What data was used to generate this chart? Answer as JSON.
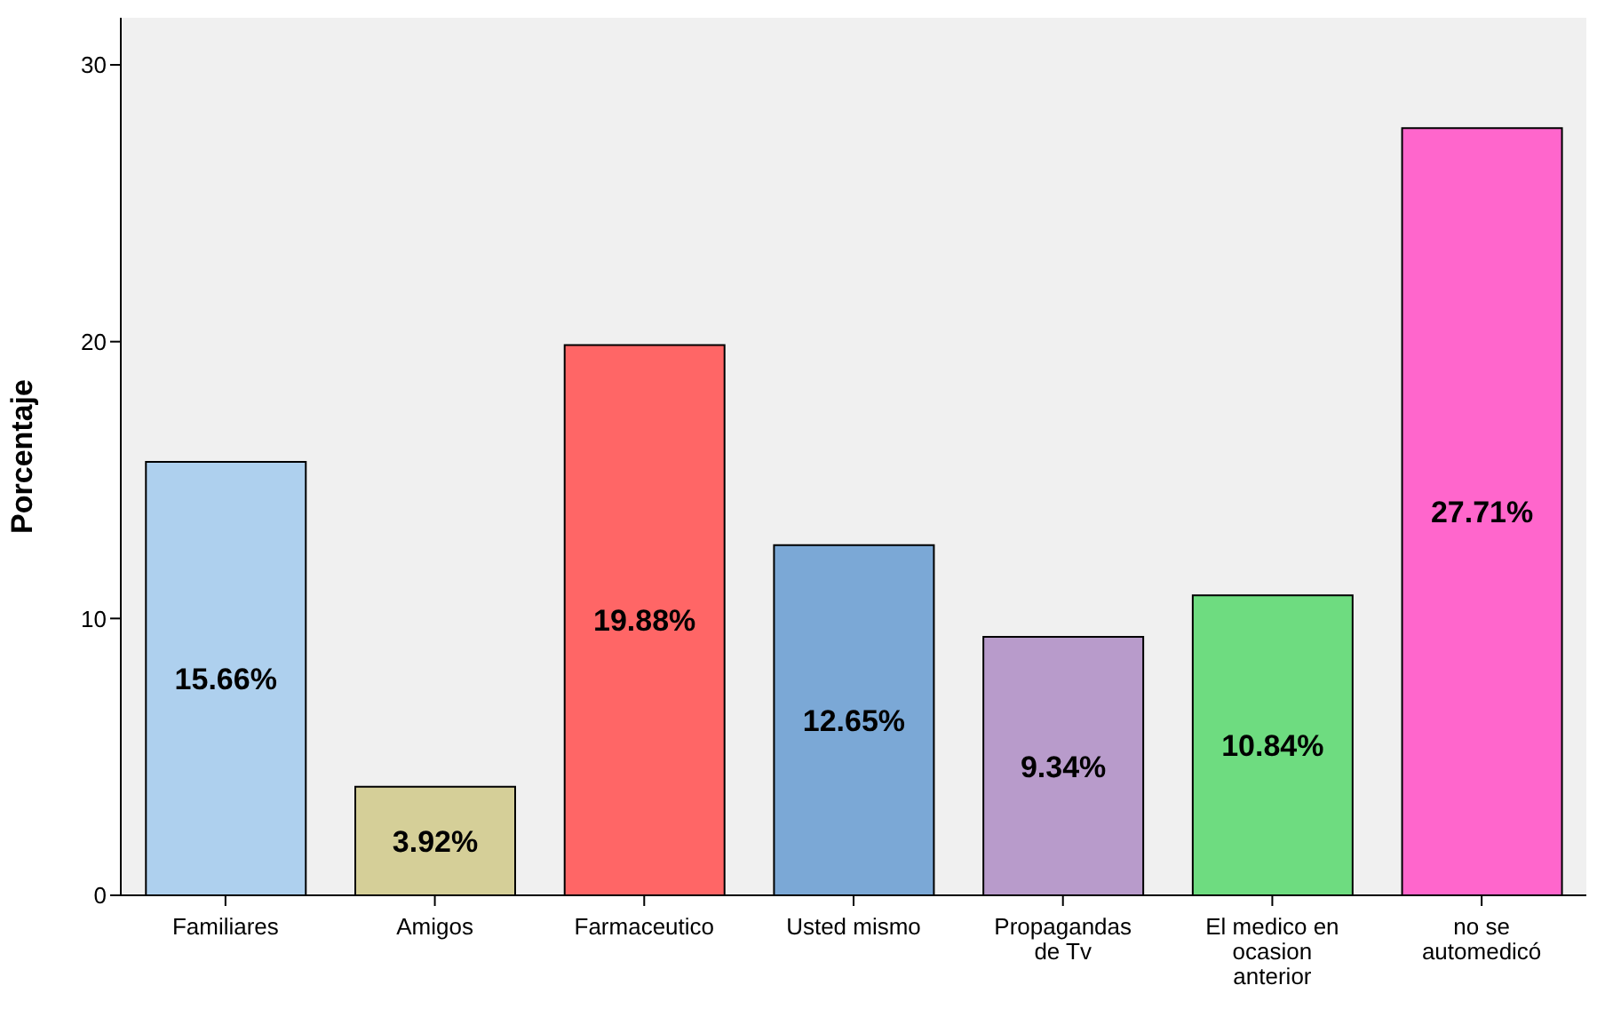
{
  "chart_data": {
    "type": "bar",
    "ylabel": "Porcentaje",
    "categories": [
      "Familiares",
      "Amigos",
      "Farmaceutico",
      "Usted mismo",
      "Propagandas de Tv",
      "El medico en ocasion anterior",
      "no se automedicó"
    ],
    "values": [
      15.66,
      3.92,
      19.88,
      12.65,
      9.34,
      10.84,
      27.71
    ],
    "value_labels": [
      "15.66%",
      "3.92%",
      "19.88%",
      "12.65%",
      "9.34%",
      "10.84%",
      "27.71%"
    ],
    "colors": [
      "#aed0ee",
      "#d5cf98",
      "#ff6666",
      "#7ba8d6",
      "#b89bcb",
      "#6edc80",
      "#ff66cc"
    ],
    "ylim": [
      0,
      31.7
    ],
    "yticks": [
      0,
      10,
      20,
      30
    ],
    "grid": false,
    "legend": false
  }
}
